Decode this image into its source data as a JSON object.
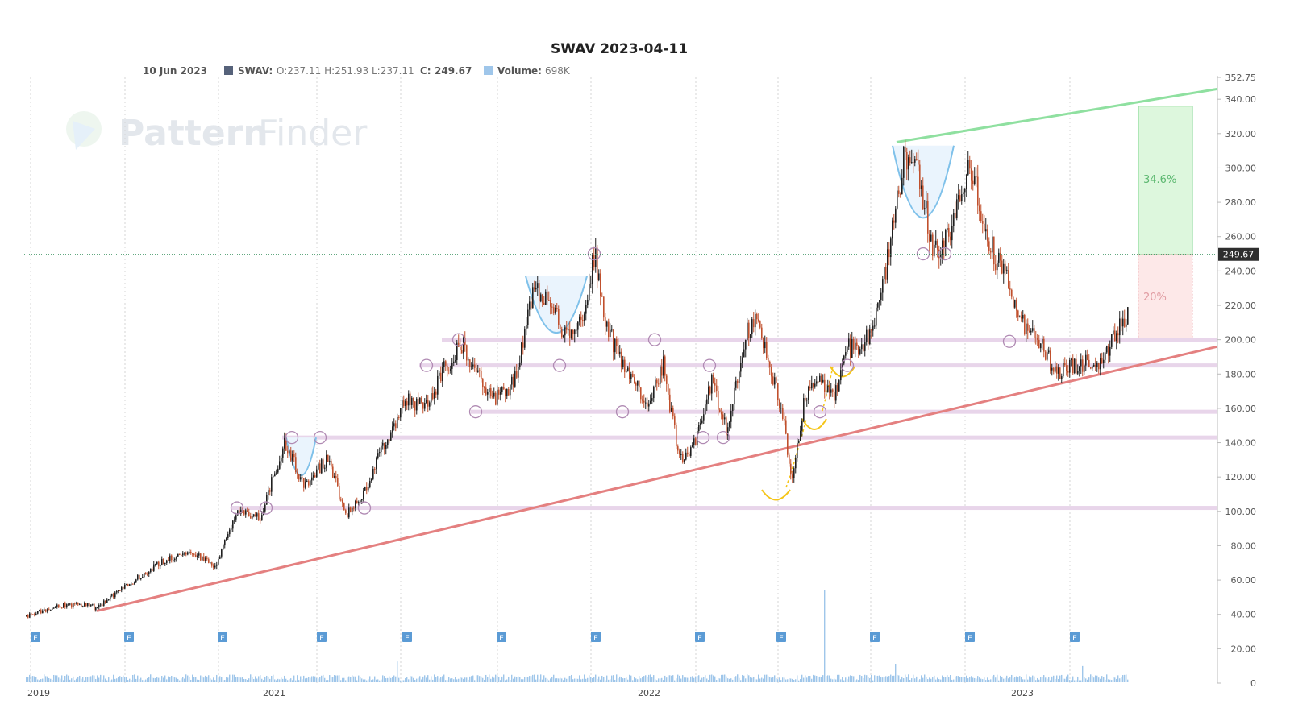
{
  "chart_data": {
    "type": "candlestick",
    "title": "SWAV 2023-04-11",
    "info": {
      "date": "10 Jun 2023",
      "symbol_label": "SWAV:",
      "ohlc_text": "O:237.11 H:251.93 L:237.11",
      "close_label": "C:",
      "close": "249.67",
      "volume_label": "Volume:",
      "volume": "698K"
    },
    "watermark": {
      "word1": "Pattern",
      "word2": "Finder"
    },
    "y_axis": {
      "ylim": [
        0,
        352.75
      ],
      "ticks": [
        "0",
        "20.00",
        "40.00",
        "60.00",
        "80.00",
        "100.00",
        "120.00",
        "140.00",
        "160.00",
        "180.00",
        "200.00",
        "220.00",
        "240.00",
        "260.00",
        "280.00",
        "300.00",
        "320.00",
        "340.00",
        "352.75"
      ]
    },
    "x_axis": {
      "labels": [
        "2019",
        "2021",
        "2022",
        "2023"
      ]
    },
    "last_price": 249.67,
    "last_price_label": "249.67",
    "close_path": [
      [
        0,
        39
      ],
      [
        40,
        45
      ],
      [
        80,
        46
      ],
      [
        85,
        43
      ],
      [
        125,
        57
      ],
      [
        165,
        70
      ],
      [
        205,
        77
      ],
      [
        235,
        68
      ],
      [
        260,
        100
      ],
      [
        290,
        96
      ],
      [
        320,
        140
      ],
      [
        345,
        115
      ],
      [
        375,
        132
      ],
      [
        395,
        97
      ],
      [
        420,
        112
      ],
      [
        440,
        135
      ],
      [
        470,
        165
      ],
      [
        495,
        160
      ],
      [
        515,
        180
      ],
      [
        540,
        197
      ],
      [
        560,
        180
      ],
      [
        580,
        165
      ],
      [
        605,
        175
      ],
      [
        630,
        230
      ],
      [
        650,
        220
      ],
      [
        670,
        200
      ],
      [
        690,
        215
      ],
      [
        705,
        250
      ],
      [
        720,
        207
      ],
      [
        745,
        180
      ],
      [
        770,
        165
      ],
      [
        790,
        185
      ],
      [
        810,
        130
      ],
      [
        830,
        140
      ],
      [
        850,
        175
      ],
      [
        870,
        145
      ],
      [
        890,
        200
      ],
      [
        905,
        215
      ],
      [
        920,
        190
      ],
      [
        940,
        150
      ],
      [
        950,
        117
      ],
      [
        965,
        165
      ],
      [
        985,
        180
      ],
      [
        1000,
        165
      ],
      [
        1020,
        195
      ],
      [
        1040,
        198
      ],
      [
        1060,
        225
      ],
      [
        1075,
        265
      ],
      [
        1090,
        310
      ],
      [
        1110,
        290
      ],
      [
        1125,
        250
      ],
      [
        1145,
        260
      ],
      [
        1160,
        290
      ],
      [
        1170,
        305
      ],
      [
        1185,
        270
      ],
      [
        1200,
        250
      ],
      [
        1220,
        230
      ],
      [
        1240,
        205
      ],
      [
        1260,
        195
      ],
      [
        1280,
        180
      ],
      [
        1300,
        185
      ],
      [
        1315,
        187
      ],
      [
        1335,
        185
      ],
      [
        1350,
        205
      ],
      [
        1365,
        215
      ],
      [
        1380,
        225
      ],
      [
        1390,
        249.67
      ]
    ],
    "volume_max": 40,
    "volume_spikes": [
      [
        205,
        10
      ],
      [
        460,
        9
      ],
      [
        815,
        9
      ],
      [
        985,
        10
      ],
      [
        990,
        40
      ],
      [
        1078,
        8
      ],
      [
        1310,
        7
      ]
    ],
    "earnings_marker_label": "E",
    "earnings_markers": [
      12,
      128,
      244,
      367,
      473,
      590,
      707,
      836,
      937,
      1053,
      1171,
      1301
    ],
    "support_levels": [
      200,
      185,
      158,
      143,
      102
    ],
    "trendline_support": {
      "from": [
        88,
        42
      ],
      "to": [
        1510,
        196
      ]
    },
    "trendline_resistance": {
      "from": [
        1080,
        315
      ],
      "to": [
        1510,
        346
      ]
    },
    "targets": {
      "gain_label": "34.6%",
      "gain_price": 336,
      "loss_label": "20%",
      "loss_price": 199.7
    },
    "pivot_markers": [
      [
        262,
        102
      ],
      [
        298,
        102
      ],
      [
        330,
        143
      ],
      [
        365,
        143
      ],
      [
        420,
        102
      ],
      [
        497,
        185
      ],
      [
        537,
        200
      ],
      [
        558,
        158
      ],
      [
        662,
        185
      ],
      [
        705,
        250
      ],
      [
        740,
        158
      ],
      [
        780,
        200
      ],
      [
        840,
        143
      ],
      [
        848,
        185
      ],
      [
        865,
        143
      ],
      [
        985,
        158
      ],
      [
        1019,
        185
      ],
      [
        1113,
        250
      ],
      [
        1140,
        250
      ],
      [
        1220,
        199
      ]
    ],
    "colors": {
      "candle_up": "#1f1f1f",
      "candle_down": "#c0502d",
      "volume": "#9fc6ea",
      "support_band": "#e8d5ea",
      "trend_support": "#e48080",
      "trend_resistance": "#8fe0a0",
      "gain_box": "#ddf7dd",
      "loss_box": "#fde8e8",
      "cup_fill": "#eaf4fd",
      "cup_line": "#7fc1ea",
      "base_line": "#f5c518",
      "earnings": "#5b9bd5"
    }
  }
}
